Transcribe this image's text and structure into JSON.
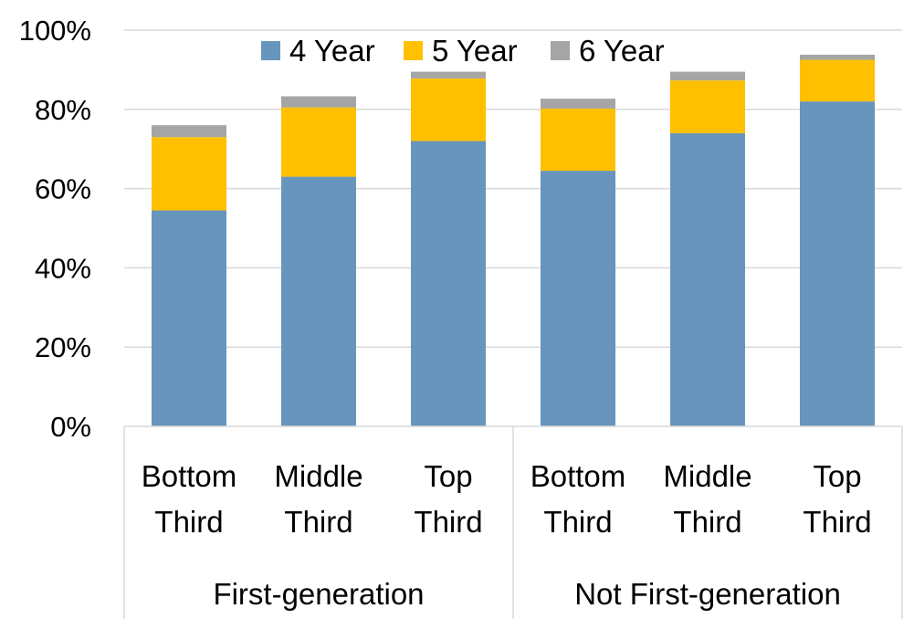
{
  "chart_data": {
    "type": "bar",
    "stacked": true,
    "title": "",
    "xlabel": "",
    "ylabel": "",
    "ylim": [
      0,
      100
    ],
    "yticks": [
      "0%",
      "20%",
      "40%",
      "60%",
      "80%",
      "100%"
    ],
    "grid": true,
    "legend": "top",
    "categories": [
      {
        "line1": "Bottom",
        "line2": "Third",
        "group": "First-generation"
      },
      {
        "line1": "Middle",
        "line2": "Third",
        "group": "First-generation"
      },
      {
        "line1": "Top",
        "line2": "Third",
        "group": "First-generation"
      },
      {
        "line1": "Bottom",
        "line2": "Third",
        "group": "Not First-generation"
      },
      {
        "line1": "Middle",
        "line2": "Third",
        "group": "Not First-generation"
      },
      {
        "line1": "Top",
        "line2": "Third",
        "group": "Not First-generation"
      }
    ],
    "groups": [
      "First-generation",
      "Not First-generation"
    ],
    "series": [
      {
        "name": "4 Year",
        "color": "#6795bb",
        "values": [
          54.5,
          63.0,
          72.0,
          64.5,
          74.0,
          82.0
        ]
      },
      {
        "name": "5 Year",
        "color": "#ffc000",
        "values": [
          18.5,
          17.5,
          15.8,
          15.7,
          13.3,
          10.5
        ]
      },
      {
        "name": "6 Year",
        "color": "#a5a5a5",
        "values": [
          3.0,
          2.8,
          1.7,
          2.5,
          2.2,
          1.3
        ]
      }
    ]
  }
}
